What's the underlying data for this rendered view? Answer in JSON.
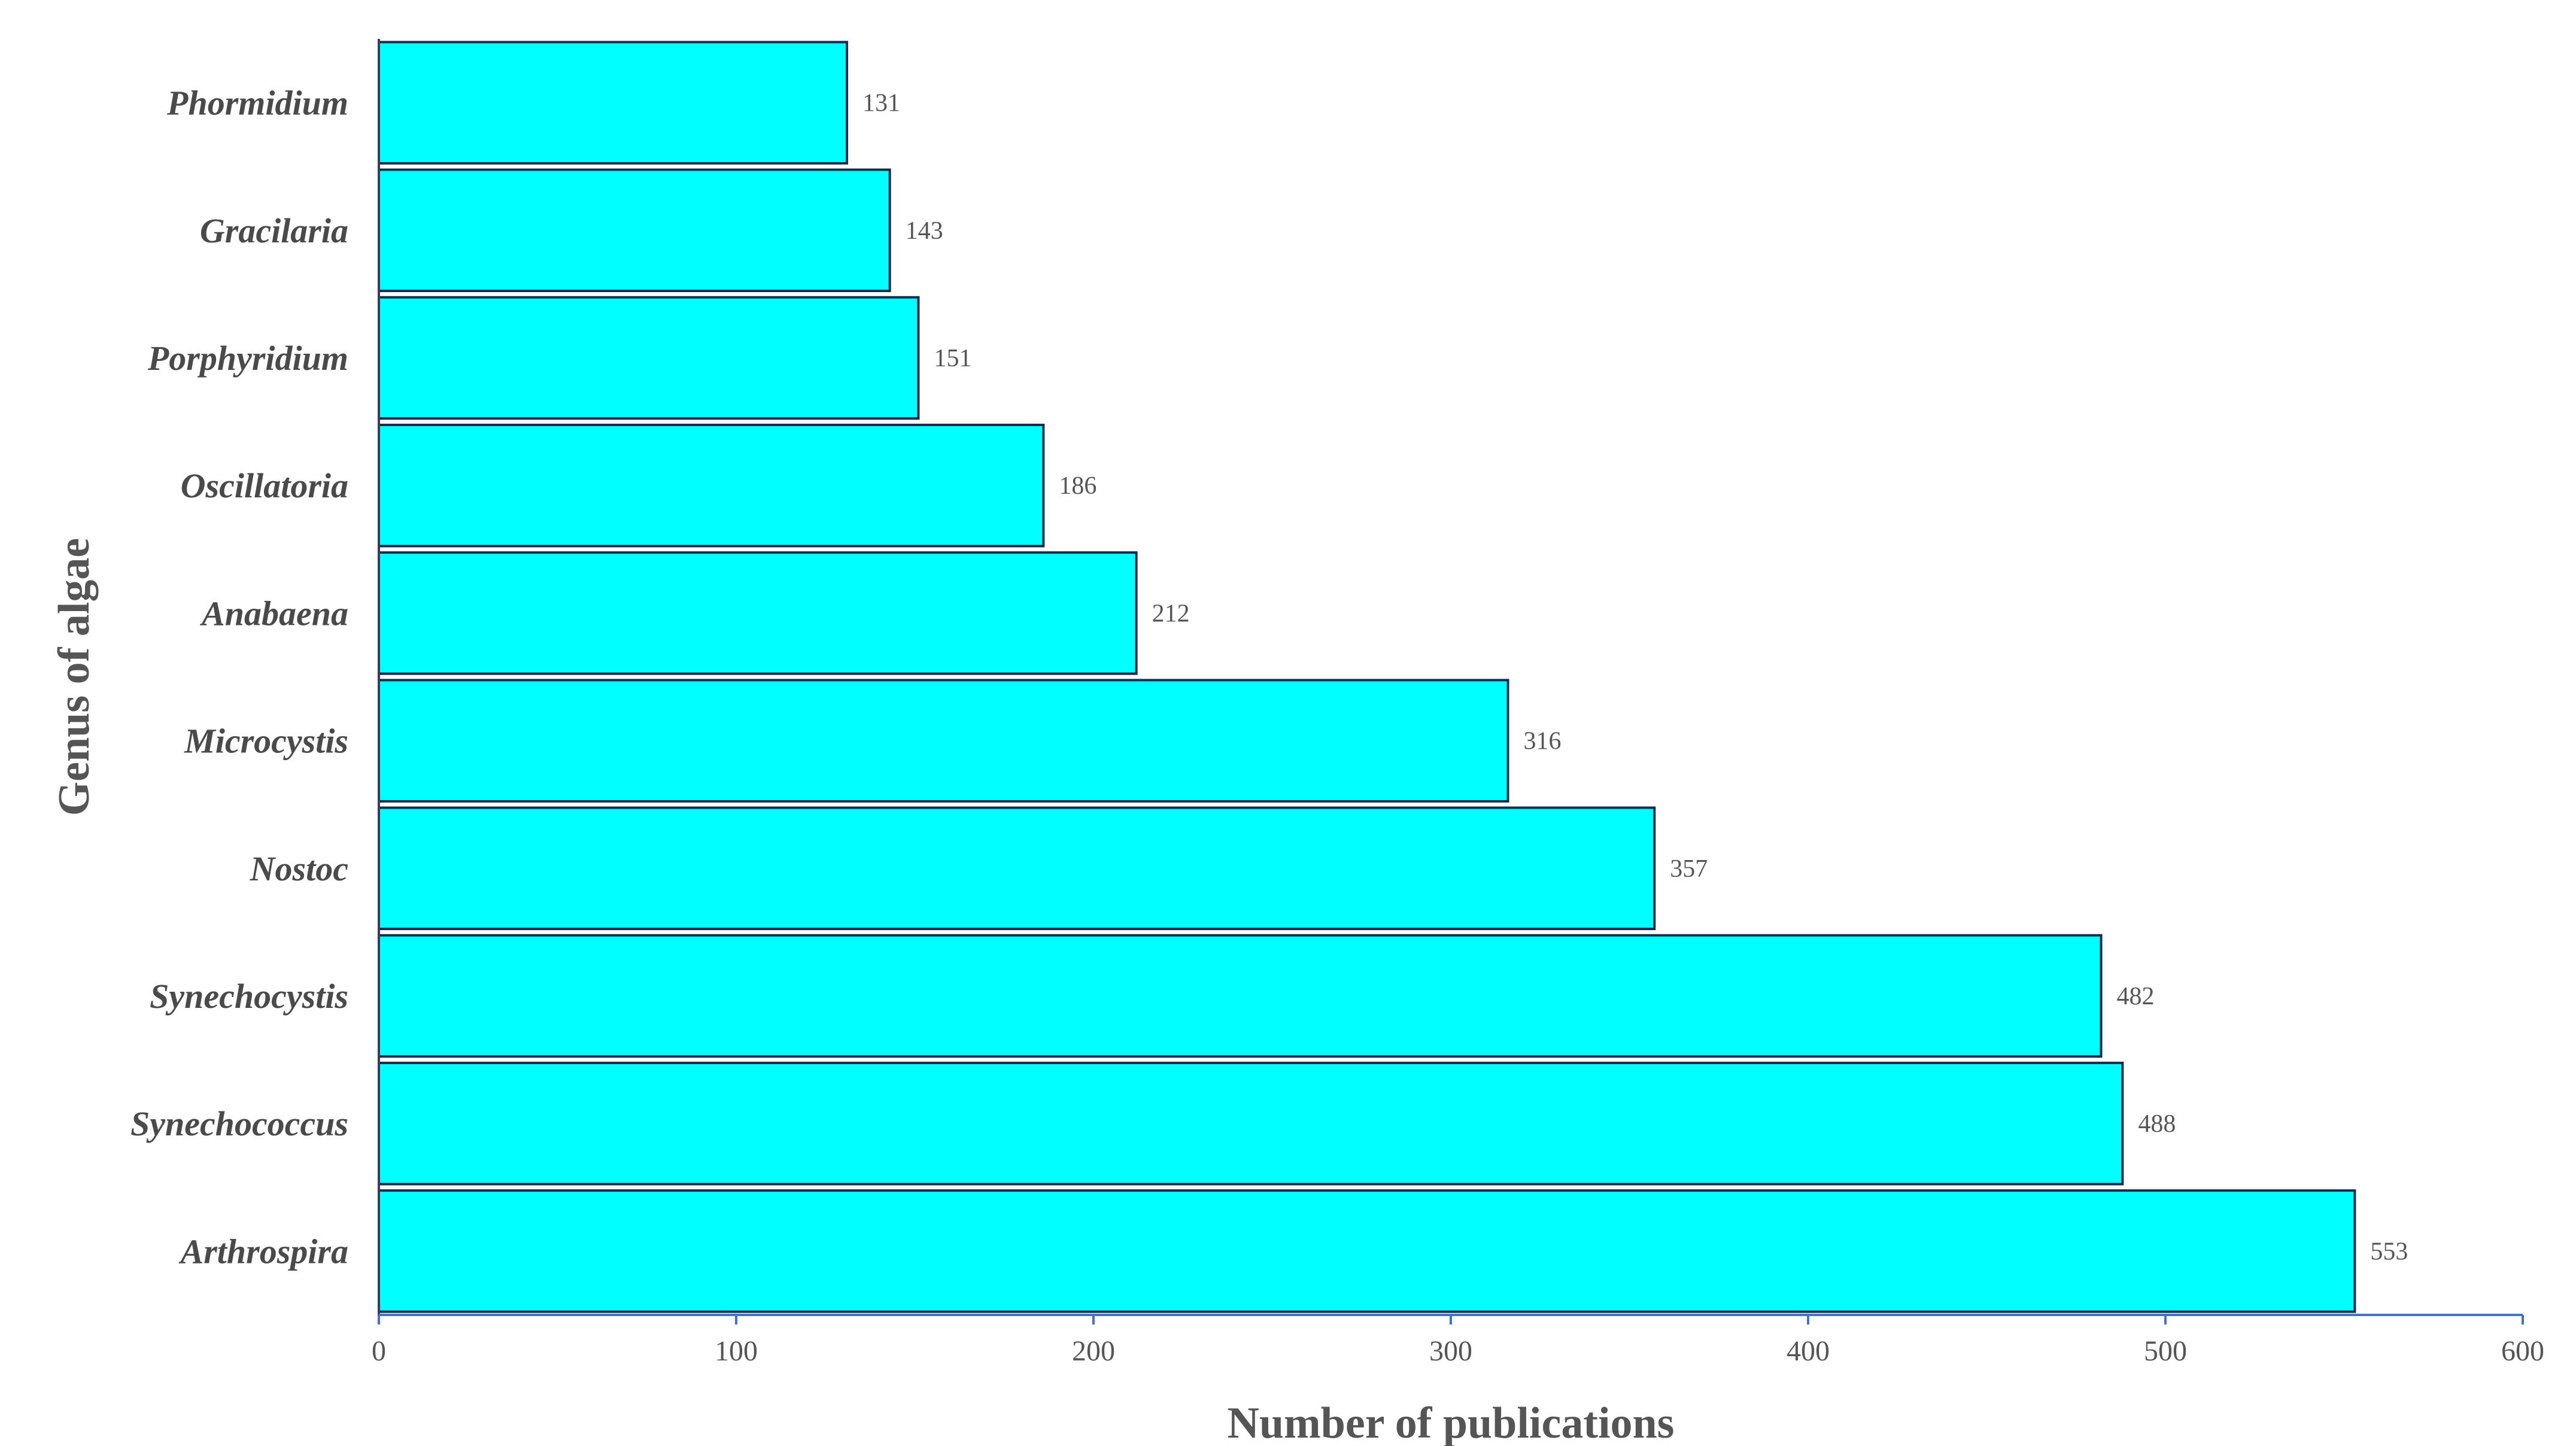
{
  "chart_data": {
    "type": "bar",
    "orientation": "horizontal",
    "categories": [
      "Phormidium",
      "Gracilaria",
      "Porphyridium",
      "Oscillatoria",
      "Anabaena",
      "Microcystis",
      "Nostoc",
      "Synechocystis",
      "Synechococcus",
      "Arthrospira"
    ],
    "values": [
      131,
      143,
      151,
      186,
      212,
      316,
      357,
      482,
      488,
      553
    ],
    "xlabel": "Number of publications",
    "ylabel": "Genus of algae",
    "xlim": [
      0,
      600
    ],
    "xticks": [
      0,
      100,
      200,
      300,
      400,
      500,
      600
    ],
    "grid": false,
    "legend": "none",
    "colors": {
      "bar_fill": "#00FFFF",
      "bar_stroke": "#1a2a4a",
      "x_axis": "#4472C4",
      "y_axis": "#3a3a5a"
    }
  }
}
